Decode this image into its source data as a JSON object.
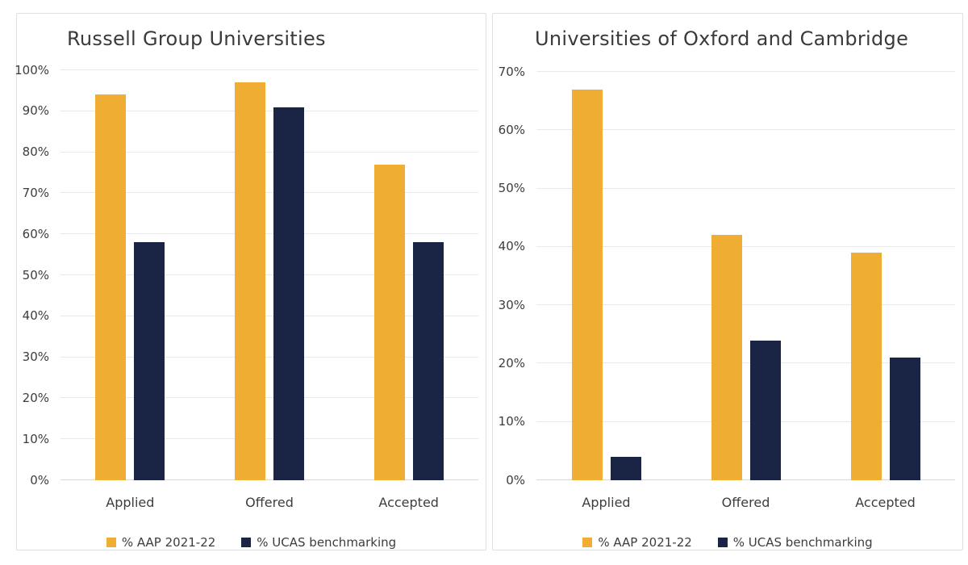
{
  "colors": {
    "gold": "#F0AD34",
    "navy": "#1A2444",
    "grid": "#e9e9e9",
    "axis": "#d8d8d8",
    "text": "#3d3d3d",
    "title": "#3a3a3a",
    "border": "#e0e0e0",
    "bg": "#ffffff"
  },
  "chart_data": [
    {
      "type": "bar",
      "title": "Russell Group Universities",
      "categories": [
        "Applied",
        "Offered",
        "Accepted"
      ],
      "series": [
        {
          "name": "% AAP 2021-22",
          "color": "#F0AD34",
          "values": [
            94,
            97,
            77
          ]
        },
        {
          "name": "% UCAS benchmarking",
          "color": "#1A2444",
          "values": [
            58,
            91,
            58
          ]
        }
      ],
      "ylim": [
        0,
        100
      ],
      "ytick_step": 10,
      "ytick_suffix": "%",
      "grid": true,
      "legend_position": "bottom"
    },
    {
      "type": "bar",
      "title": "Universities of Oxford and Cambridge",
      "categories": [
        "Applied",
        "Offered",
        "Accepted"
      ],
      "series": [
        {
          "name": "% AAP 2021-22",
          "color": "#F0AD34",
          "values": [
            67,
            42,
            39
          ]
        },
        {
          "name": "% UCAS benchmarking",
          "color": "#1A2444",
          "values": [
            4,
            24,
            21
          ]
        }
      ],
      "ylim": [
        0,
        70
      ],
      "ytick_step": 10,
      "ytick_suffix": "%",
      "grid": true,
      "legend_position": "bottom"
    }
  ]
}
